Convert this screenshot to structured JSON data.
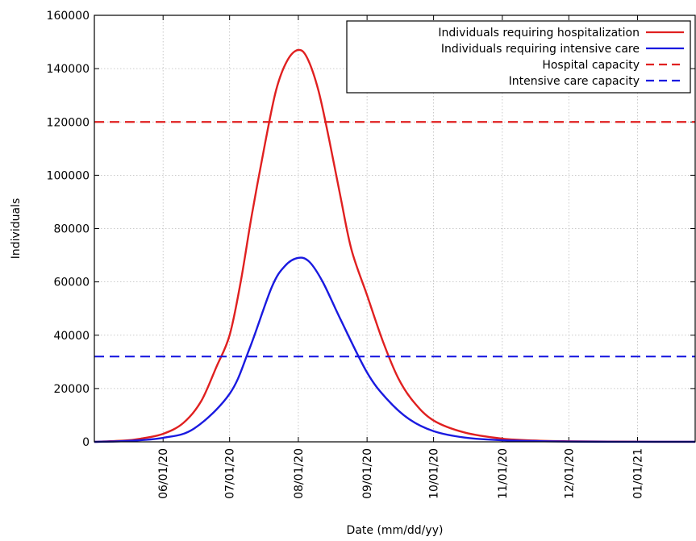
{
  "chart_data": {
    "type": "line",
    "title": "",
    "xlabel": "Date (mm/dd/yy)",
    "ylabel": "Individuals",
    "ylim": [
      0,
      160000
    ],
    "xlim": [
      "2020-05-01",
      "2021-01-27"
    ],
    "y_ticks": [
      0,
      20000,
      40000,
      60000,
      80000,
      100000,
      120000,
      140000,
      160000
    ],
    "y_tick_labels": [
      "0",
      "20000",
      "40000",
      "60000",
      "80000",
      "100000",
      "120000",
      "140000",
      "160000"
    ],
    "x_ticks": [
      {
        "date": "2020-06-01",
        "label": "06/01/20"
      },
      {
        "date": "2020-07-01",
        "label": "07/01/20"
      },
      {
        "date": "2020-08-01",
        "label": "08/01/20"
      },
      {
        "date": "2020-09-01",
        "label": "09/01/20"
      },
      {
        "date": "2020-10-01",
        "label": "10/01/20"
      },
      {
        "date": "2020-11-01",
        "label": "11/01/20"
      },
      {
        "date": "2020-12-01",
        "label": "12/01/20"
      },
      {
        "date": "2021-01-01",
        "label": "01/01/21"
      }
    ],
    "grid": true,
    "legend_position": "top-right",
    "series": [
      {
        "name": "Individuals requiring hospitalization",
        "color": "#e02020",
        "style": "solid",
        "points": [
          [
            "2020-05-01",
            0
          ],
          [
            "2020-05-15",
            500
          ],
          [
            "2020-05-22",
            1200
          ],
          [
            "2020-06-01",
            3000
          ],
          [
            "2020-06-10",
            7000
          ],
          [
            "2020-06-18",
            15000
          ],
          [
            "2020-06-25",
            28000
          ],
          [
            "2020-07-01",
            40000
          ],
          [
            "2020-07-06",
            60000
          ],
          [
            "2020-07-11",
            85000
          ],
          [
            "2020-07-17",
            112000
          ],
          [
            "2020-07-22",
            132000
          ],
          [
            "2020-07-27",
            143000
          ],
          [
            "2020-08-01",
            147000
          ],
          [
            "2020-08-05",
            144000
          ],
          [
            "2020-08-10",
            132000
          ],
          [
            "2020-08-15",
            113000
          ],
          [
            "2020-08-20",
            92000
          ],
          [
            "2020-08-25",
            72000
          ],
          [
            "2020-09-01",
            55000
          ],
          [
            "2020-09-08",
            38000
          ],
          [
            "2020-09-15",
            24000
          ],
          [
            "2020-09-22",
            15000
          ],
          [
            "2020-10-01",
            8000
          ],
          [
            "2020-10-15",
            3500
          ],
          [
            "2020-11-01",
            1200
          ],
          [
            "2020-11-15",
            500
          ],
          [
            "2020-12-01",
            200
          ],
          [
            "2021-01-01",
            50
          ],
          [
            "2021-01-27",
            10
          ]
        ]
      },
      {
        "name": "Individuals requiring intensive care",
        "color": "#1a1ae0",
        "style": "solid",
        "points": [
          [
            "2020-05-01",
            0
          ],
          [
            "2020-05-15",
            300
          ],
          [
            "2020-06-01",
            1500
          ],
          [
            "2020-06-15",
            5000
          ],
          [
            "2020-07-01",
            18000
          ],
          [
            "2020-07-10",
            35000
          ],
          [
            "2020-07-20",
            58000
          ],
          [
            "2020-07-26",
            66000
          ],
          [
            "2020-08-01",
            69000
          ],
          [
            "2020-08-06",
            67500
          ],
          [
            "2020-08-12",
            60000
          ],
          [
            "2020-08-20",
            46000
          ],
          [
            "2020-09-01",
            26000
          ],
          [
            "2020-09-10",
            16000
          ],
          [
            "2020-09-20",
            8500
          ],
          [
            "2020-10-01",
            4000
          ],
          [
            "2020-10-15",
            1600
          ],
          [
            "2020-11-01",
            600
          ],
          [
            "2020-12-01",
            100
          ],
          [
            "2021-01-01",
            20
          ],
          [
            "2021-01-27",
            5
          ]
        ]
      },
      {
        "name": "Hospital capacity",
        "color": "#e02020",
        "style": "dashed",
        "constant": 120000
      },
      {
        "name": "Intensive care capacity",
        "color": "#1a1ae0",
        "style": "dashed",
        "constant": 32000
      }
    ]
  }
}
